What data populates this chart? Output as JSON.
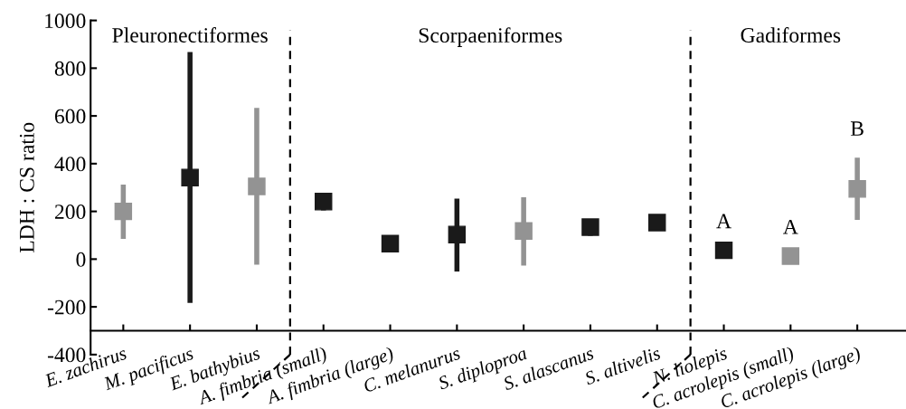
{
  "chart_data": {
    "type": "scatter",
    "ylabel": "LDH : CS ratio",
    "categories": [
      "E. zachirus",
      "M. pacificus",
      "E. bathybius",
      "A. fimbria (small)",
      "A. fimbria (large)",
      "C. melanurus",
      "S. diploproa",
      "S. alascanus",
      "S. altivelis",
      "N. liolepis",
      "C. acrolepis (small)",
      "C. acrolepis (large)"
    ],
    "values": [
      200,
      342,
      305,
      241,
      65,
      103,
      118,
      134,
      153,
      37,
      13,
      294
    ],
    "errors": [
      [
        85,
        312
      ],
      [
        -183,
        868
      ],
      [
        -23,
        634
      ],
      [
        204,
        278
      ],
      null,
      [
        -52,
        254
      ],
      [
        -27,
        259
      ],
      [
        98,
        167
      ],
      [
        119,
        186
      ],
      null,
      null,
      [
        164,
        425
      ]
    ],
    "colors": [
      "#939393",
      "#1a1a1a",
      "#939393",
      "#1a1a1a",
      "#1a1a1a",
      "#1a1a1a",
      "#939393",
      "#1a1a1a",
      "#1a1a1a",
      "#1a1a1a",
      "#939393",
      "#939393"
    ],
    "marker": "square",
    "ylim": [
      -400,
      1000
    ],
    "yticks": [
      -400,
      -200,
      0,
      200,
      400,
      600,
      800,
      1000
    ],
    "annotations": [
      "Pleuronectiformes",
      "Scorpaeniformes",
      "Gadiformes",
      {
        "text": "A",
        "x": "N. liolepis",
        "y": 37
      },
      {
        "text": "A",
        "x": "C. acrolepis (small)",
        "y": 13
      },
      {
        "text": "B",
        "x": "C. acrolepis (large)",
        "y": 294
      }
    ],
    "grid": false,
    "legend": false
  }
}
